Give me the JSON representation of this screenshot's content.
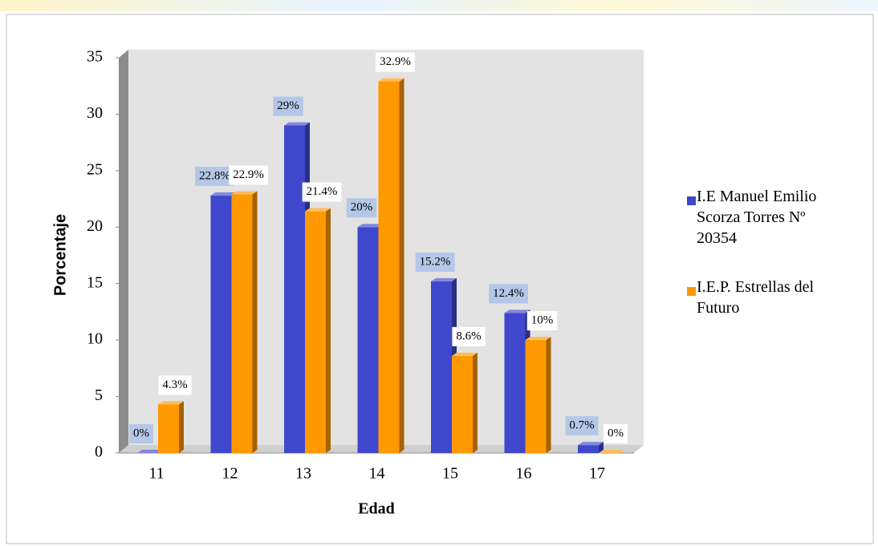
{
  "chart_data": {
    "type": "bar",
    "x_label": "Edad",
    "y_label": "Porcentaje",
    "categories": [
      "11",
      "12",
      "13",
      "14",
      "15",
      "16",
      "17"
    ],
    "series": [
      {
        "name": "I.E Manuel Emilio Scorza Torres Nº 20354",
        "color": "#3f48cc",
        "values": [
          0,
          22.8,
          29,
          20,
          15.2,
          12.4,
          0.7
        ],
        "value_labels": [
          "0%",
          "22.8%",
          "29%",
          "20%",
          "15.2%",
          "12.4%",
          "0.7%"
        ]
      },
      {
        "name": "I.E.P. Estrellas del Futuro",
        "color": "#ff9900",
        "values": [
          4.3,
          22.9,
          21.4,
          32.9,
          8.6,
          10,
          0
        ],
        "value_labels": [
          "4.3%",
          "22.9%",
          "21.4%",
          "32.9%",
          "8.6%",
          "10%",
          "0%"
        ]
      }
    ],
    "ylim": [
      0,
      35
    ],
    "yticks": [
      0,
      5,
      10,
      15,
      20,
      25,
      30,
      35
    ]
  }
}
